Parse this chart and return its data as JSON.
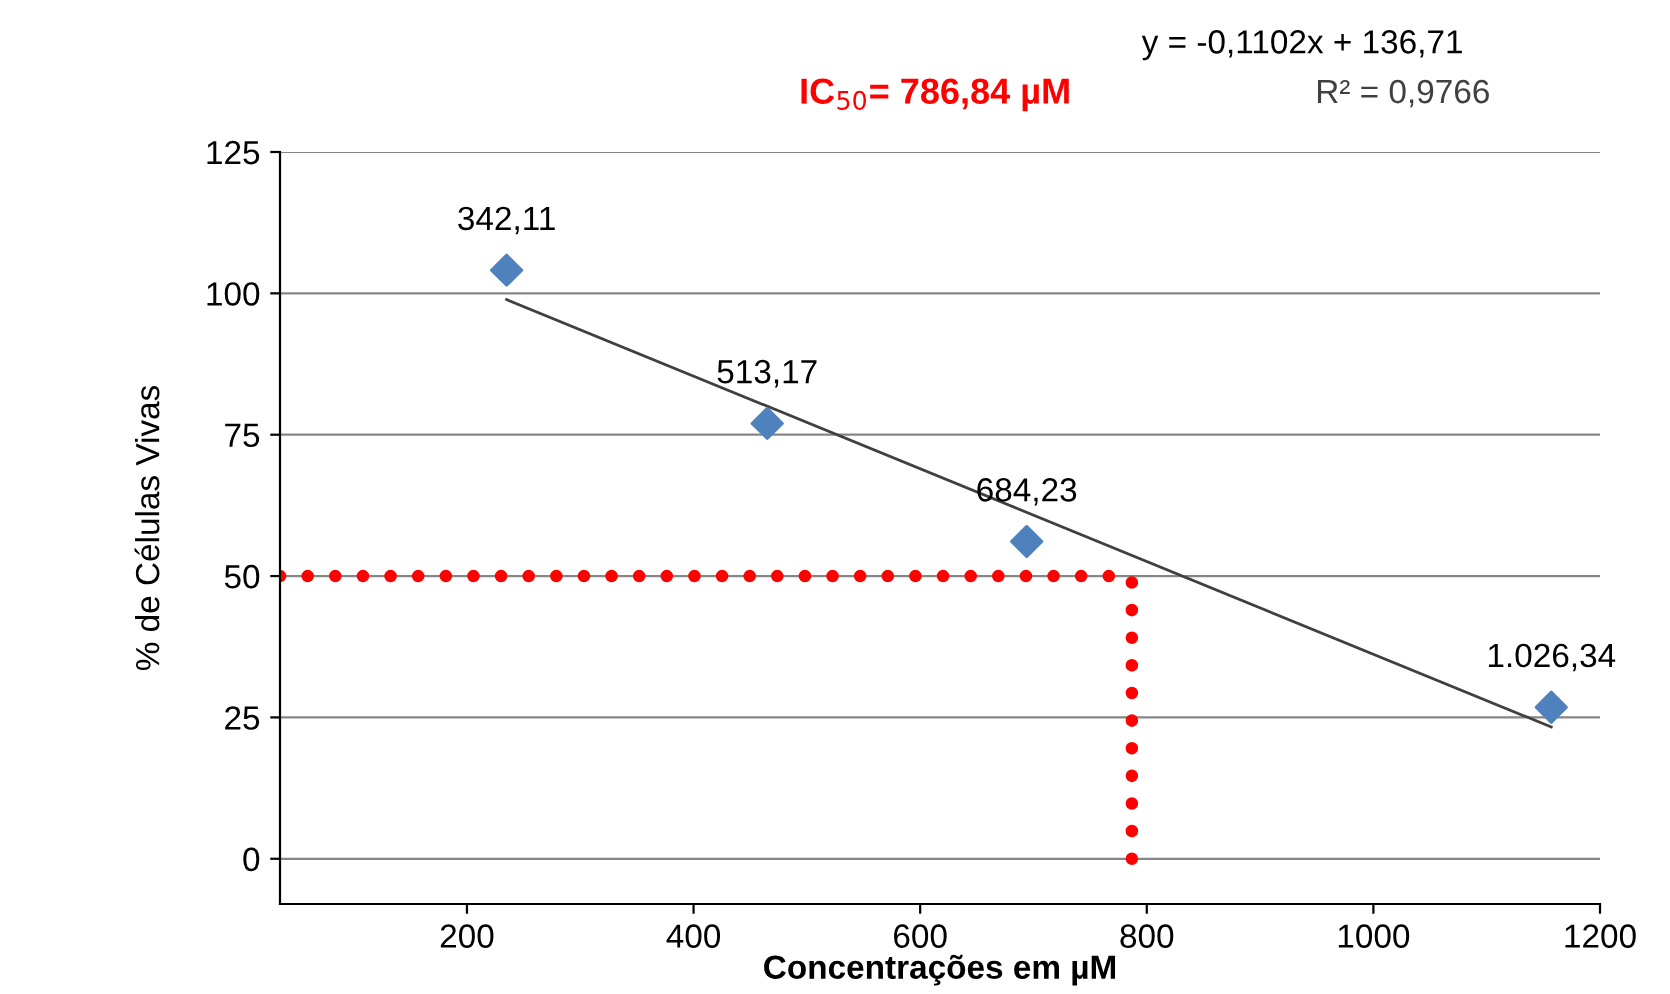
{
  "chart_data": {
    "type": "scatter",
    "xlabel": "Concentrações em µM",
    "ylabel": "% de Células Vivas",
    "xlim": [
      35,
      1200
    ],
    "xticks": [
      200,
      400,
      600,
      800,
      1000,
      1200
    ],
    "ylim": [
      -8,
      125
    ],
    "yticks": [
      0,
      25,
      50,
      75,
      100,
      125
    ],
    "grid": "y",
    "legend": false,
    "series": [
      {
        "color": "#4f81bd",
        "marker": "diamond",
        "x": [
          235,
          465,
          694,
          1157
        ],
        "values": [
          104.1,
          77.0,
          56.1,
          26.8
        ]
      },
      {
        "type": "line",
        "color": "#404040",
        "marker": "none",
        "line_style": "solid",
        "x": [
          235,
          1157
        ],
        "values": [
          98.9,
          23.3
        ]
      },
      {
        "type": "line",
        "color": "#ff0000",
        "marker": "none",
        "line_style": "dotted",
        "x": [
          35,
          786.84
        ],
        "values": [
          50,
          50
        ]
      },
      {
        "type": "line",
        "color": "#ff0000",
        "marker": "none",
        "line_style": "dotted",
        "x": [
          786.84,
          786.84
        ],
        "values": [
          0,
          50
        ]
      }
    ],
    "annotations": [
      "y = -0,1102x + 136,71",
      "IC$_{50}$= 786,84 µM",
      "R² = 0,9766",
      {
        "text": "342,11",
        "x": 235,
        "y": 104.1
      },
      {
        "text": "513,17",
        "x": 465,
        "y": 77.0
      },
      {
        "text": "684,23",
        "x": 694,
        "y": 56.1
      },
      {
        "text": "1.026,34",
        "x": 1157,
        "y": 26.8
      }
    ]
  }
}
